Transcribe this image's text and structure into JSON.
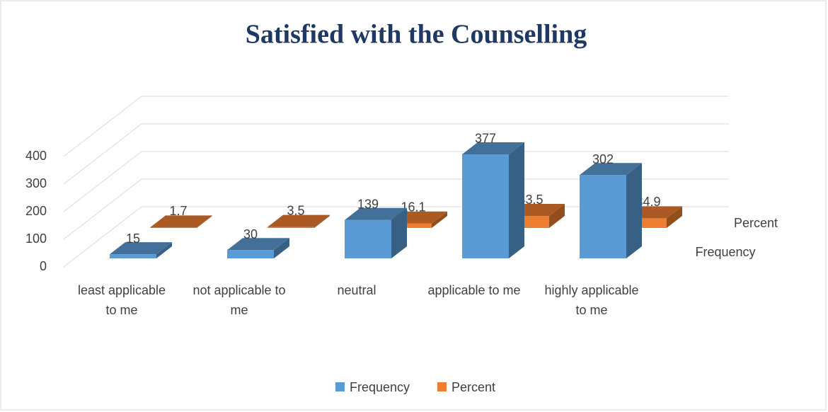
{
  "chart_data": {
    "type": "bar3d",
    "title": "Satisfied with the Counselling",
    "categories": [
      "least applicable to me",
      "not applicable to me",
      "neutral",
      "applicable to me",
      "highly applicable to me"
    ],
    "series": [
      {
        "name": "Frequency",
        "color": "#5b9bd5",
        "values": [
          15,
          30,
          139,
          377,
          302
        ]
      },
      {
        "name": "Percent",
        "color": "#ed7d31",
        "values": [
          1.7,
          3.5,
          16.1,
          43.5,
          34.9
        ]
      }
    ],
    "ylim": [
      0,
      400
    ],
    "yticks": [
      0,
      100,
      200,
      300,
      400
    ],
    "grid": true,
    "legend": "bottom"
  }
}
